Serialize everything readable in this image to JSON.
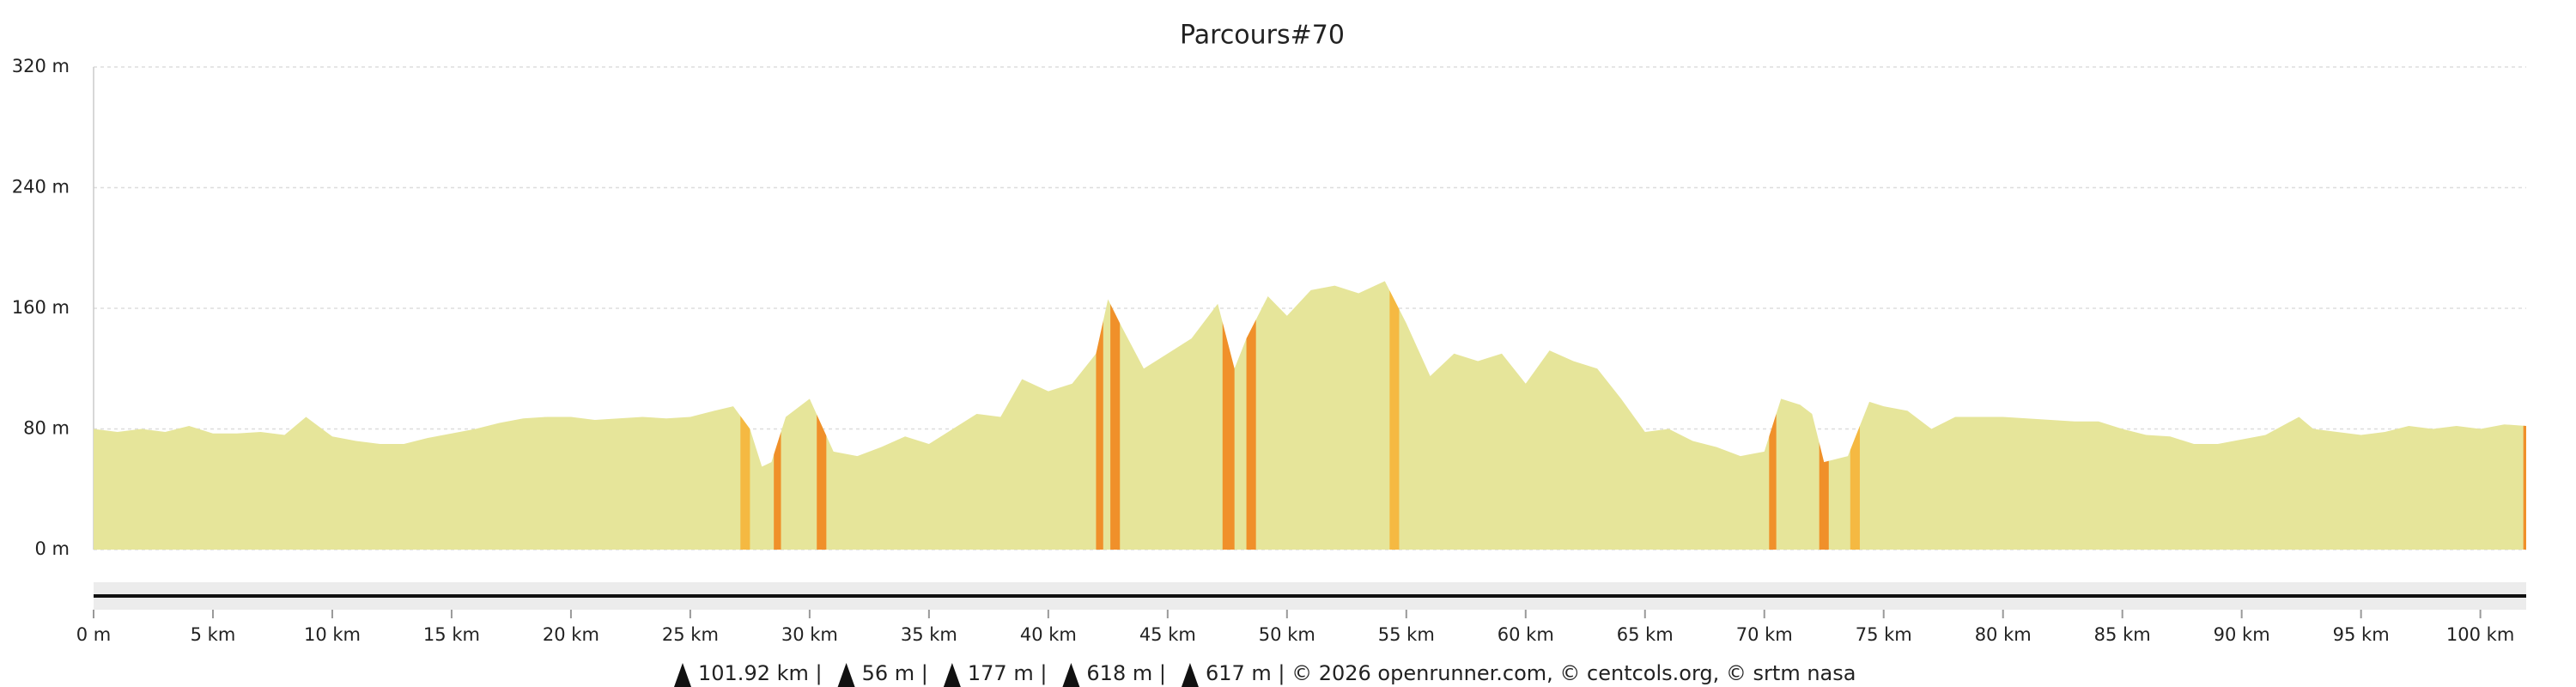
{
  "chart_data": {
    "type": "area",
    "title": "Parcours#70",
    "color": "#e6e59a",
    "x": [
      0,
      1,
      2,
      3,
      4,
      5,
      6,
      7,
      8,
      8.9,
      10,
      11,
      12,
      13,
      14,
      15,
      16,
      17,
      18,
      19,
      20,
      21,
      22,
      23,
      24,
      25,
      26,
      26.8,
      27.5,
      28.0,
      28.4,
      29,
      30,
      31,
      32,
      33,
      34,
      35,
      36,
      37,
      38,
      38.9,
      40,
      41,
      42,
      42.5,
      43,
      44,
      45,
      46,
      47.1,
      47.8,
      48.3,
      49.2,
      50,
      51,
      52,
      53,
      54.1,
      55,
      56,
      57,
      58,
      59,
      60,
      61,
      62,
      63,
      64,
      65,
      66,
      67,
      68,
      69,
      70,
      70.7,
      71.5,
      72,
      72.5,
      73,
      73.5,
      74.4,
      75,
      76,
      77,
      78,
      79,
      80,
      81,
      82,
      83,
      84,
      85,
      86,
      87,
      88,
      89,
      90,
      91,
      92.4,
      93,
      94,
      95,
      96,
      97,
      98,
      99,
      100,
      101,
      101.92
    ],
    "values": [
      80,
      78,
      80,
      78,
      82,
      77,
      77,
      78,
      76,
      88,
      75,
      72,
      70,
      70,
      74,
      77,
      80,
      84,
      87,
      88,
      88,
      86,
      87,
      88,
      87,
      88,
      92,
      95,
      80,
      55,
      58,
      88,
      100,
      65,
      62,
      68,
      75,
      70,
      80,
      90,
      88,
      113,
      105,
      110,
      130,
      166,
      150,
      120,
      130,
      140,
      163,
      120,
      140,
      168,
      155,
      172,
      175,
      170,
      178,
      150,
      115,
      130,
      125,
      130,
      110,
      132,
      125,
      120,
      100,
      78,
      80,
      72,
      68,
      62,
      65,
      100,
      96,
      90,
      58,
      60,
      62,
      98,
      95,
      92,
      80,
      88,
      88,
      88,
      87,
      86,
      85,
      85,
      80,
      76,
      75,
      70,
      70,
      73,
      76,
      88,
      80,
      78,
      76,
      78,
      82,
      80,
      82,
      80,
      83,
      82
    ],
    "highlights": [
      {
        "x0": 27.1,
        "x1": 27.5,
        "color": "#f5b942"
      },
      {
        "x0": 28.5,
        "x1": 28.8,
        "color": "#f0902a"
      },
      {
        "x0": 30.3,
        "x1": 30.7,
        "color": "#f0902a"
      },
      {
        "x0": 42.0,
        "x1": 42.3,
        "color": "#f0902a"
      },
      {
        "x0": 42.6,
        "x1": 43.0,
        "color": "#f0902a"
      },
      {
        "x0": 47.3,
        "x1": 47.8,
        "color": "#f0902a"
      },
      {
        "x0": 48.3,
        "x1": 48.7,
        "color": "#f0902a"
      },
      {
        "x0": 54.3,
        "x1": 54.7,
        "color": "#f5b942"
      },
      {
        "x0": 70.2,
        "x1": 70.5,
        "color": "#f0902a"
      },
      {
        "x0": 72.3,
        "x1": 72.7,
        "color": "#f0902a"
      },
      {
        "x0": 73.6,
        "x1": 74.0,
        "color": "#f5b942"
      },
      {
        "x0": 101.8,
        "x1": 101.92,
        "color": "#f0902a"
      }
    ],
    "xlim": [
      0,
      101.92
    ],
    "ylim": [
      0,
      320
    ],
    "yticks": [
      {
        "value": 0,
        "label": "0 m"
      },
      {
        "value": 80,
        "label": "80 m"
      },
      {
        "value": 160,
        "label": "160 m"
      },
      {
        "value": 240,
        "label": "240 m"
      },
      {
        "value": 320,
        "label": "320 m"
      }
    ],
    "xticks": [
      {
        "value": 0,
        "label": "0 m"
      },
      {
        "value": 5,
        "label": "5 km"
      },
      {
        "value": 10,
        "label": "10 km"
      },
      {
        "value": 15,
        "label": "15 km"
      },
      {
        "value": 20,
        "label": "20 km"
      },
      {
        "value": 25,
        "label": "25 km"
      },
      {
        "value": 30,
        "label": "30 km"
      },
      {
        "value": 35,
        "label": "35 km"
      },
      {
        "value": 40,
        "label": "40 km"
      },
      {
        "value": 45,
        "label": "45 km"
      },
      {
        "value": 50,
        "label": "50 km"
      },
      {
        "value": 55,
        "label": "55 km"
      },
      {
        "value": 60,
        "label": "60 km"
      },
      {
        "value": 65,
        "label": "65 km"
      },
      {
        "value": 70,
        "label": "70 km"
      },
      {
        "value": 75,
        "label": "75 km"
      },
      {
        "value": 80,
        "label": "80 km"
      },
      {
        "value": 85,
        "label": "85 km"
      },
      {
        "value": 90,
        "label": "90 km"
      },
      {
        "value": 95,
        "label": "95 km"
      },
      {
        "value": 100,
        "label": "100 km"
      }
    ],
    "grid": true,
    "footer": [
      "101.92 km |",
      "56 m |",
      "177 m |",
      "618 m |",
      "617 m | © 2026 openrunner.com, © centcols.org, © srtm nasa"
    ]
  }
}
